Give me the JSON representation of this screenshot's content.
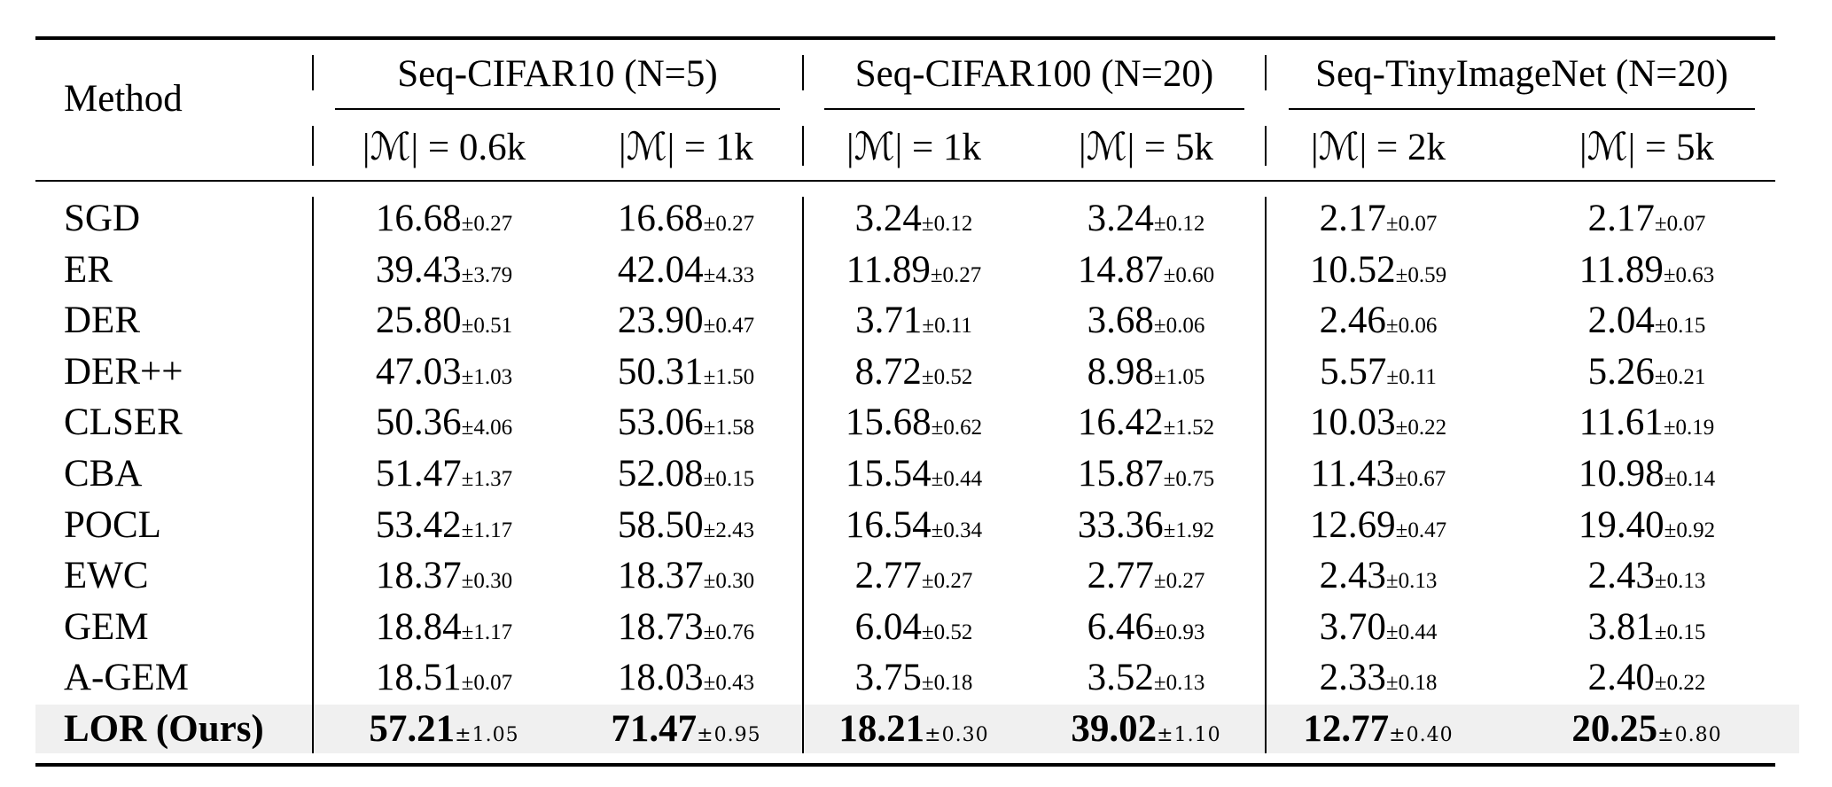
{
  "table": {
    "method_header": "Method",
    "groups": [
      {
        "label": "Seq-CIFAR10 (N=5)",
        "subs": [
          "|ℳ| = 0.6k",
          "|ℳ| = 1k"
        ]
      },
      {
        "label": "Seq-CIFAR100 (N=20)",
        "subs": [
          "|ℳ| = 1k",
          "|ℳ| = 5k"
        ]
      },
      {
        "label": "Seq-TinyImageNet (N=20)",
        "subs": [
          "|ℳ| = 2k",
          "|ℳ| = 5k"
        ]
      }
    ],
    "rows": [
      {
        "method": "SGD",
        "cells": [
          [
            "16.68",
            "±0.27"
          ],
          [
            "16.68",
            "±0.27"
          ],
          [
            "3.24",
            "±0.12"
          ],
          [
            "3.24",
            "±0.12"
          ],
          [
            "2.17",
            "±0.07"
          ],
          [
            "2.17",
            "±0.07"
          ]
        ]
      },
      {
        "method": "ER",
        "cells": [
          [
            "39.43",
            "±3.79"
          ],
          [
            "42.04",
            "±4.33"
          ],
          [
            "11.89",
            "±0.27"
          ],
          [
            "14.87",
            "±0.60"
          ],
          [
            "10.52",
            "±0.59"
          ],
          [
            "11.89",
            "±0.63"
          ]
        ]
      },
      {
        "method": "DER",
        "cells": [
          [
            "25.80",
            "±0.51"
          ],
          [
            "23.90",
            "±0.47"
          ],
          [
            "3.71",
            "±0.11"
          ],
          [
            "3.68",
            "±0.06"
          ],
          [
            "2.46",
            "±0.06"
          ],
          [
            "2.04",
            "±0.15"
          ]
        ]
      },
      {
        "method": "DER++",
        "cells": [
          [
            "47.03",
            "±1.03"
          ],
          [
            "50.31",
            "±1.50"
          ],
          [
            "8.72",
            "±0.52"
          ],
          [
            "8.98",
            "±1.05"
          ],
          [
            "5.57",
            "±0.11"
          ],
          [
            "5.26",
            "±0.21"
          ]
        ]
      },
      {
        "method": "CLSER",
        "cells": [
          [
            "50.36",
            "±4.06"
          ],
          [
            "53.06",
            "±1.58"
          ],
          [
            "15.68",
            "±0.62"
          ],
          [
            "16.42",
            "±1.52"
          ],
          [
            "10.03",
            "±0.22"
          ],
          [
            "11.61",
            "±0.19"
          ]
        ]
      },
      {
        "method": "CBA",
        "cells": [
          [
            "51.47",
            "±1.37"
          ],
          [
            "52.08",
            "±0.15"
          ],
          [
            "15.54",
            "±0.44"
          ],
          [
            "15.87",
            "±0.75"
          ],
          [
            "11.43",
            "±0.67"
          ],
          [
            "10.98",
            "±0.14"
          ]
        ]
      },
      {
        "method": "POCL",
        "cells": [
          [
            "53.42",
            "±1.17"
          ],
          [
            "58.50",
            "±2.43"
          ],
          [
            "16.54",
            "±0.34"
          ],
          [
            "33.36",
            "±1.92"
          ],
          [
            "12.69",
            "±0.47"
          ],
          [
            "19.40",
            "±0.92"
          ]
        ]
      },
      {
        "method": "EWC",
        "cells": [
          [
            "18.37",
            "±0.30"
          ],
          [
            "18.37",
            "±0.30"
          ],
          [
            "2.77",
            "±0.27"
          ],
          [
            "2.77",
            "±0.27"
          ],
          [
            "2.43",
            "±0.13"
          ],
          [
            "2.43",
            "±0.13"
          ]
        ]
      },
      {
        "method": "GEM",
        "cells": [
          [
            "18.84",
            "±1.17"
          ],
          [
            "18.73",
            "±0.76"
          ],
          [
            "6.04",
            "±0.52"
          ],
          [
            "6.46",
            "±0.93"
          ],
          [
            "3.70",
            "±0.44"
          ],
          [
            "3.81",
            "±0.15"
          ]
        ]
      },
      {
        "method": "A-GEM",
        "cells": [
          [
            "18.51",
            "±0.07"
          ],
          [
            "18.03",
            "±0.43"
          ],
          [
            "3.75",
            "±0.18"
          ],
          [
            "3.52",
            "±0.13"
          ],
          [
            "2.33",
            "±0.18"
          ],
          [
            "2.40",
            "±0.22"
          ]
        ]
      },
      {
        "method": "LOR (Ours)",
        "highlight": true,
        "cells": [
          [
            "57.21",
            "±1.05"
          ],
          [
            "71.47",
            "±0.95"
          ],
          [
            "18.21",
            "±0.30"
          ],
          [
            "39.02",
            "±1.10"
          ],
          [
            "12.77",
            "±0.40"
          ],
          [
            "20.25",
            "±0.80"
          ]
        ]
      }
    ],
    "highlight_color": "#f0f0f0"
  }
}
